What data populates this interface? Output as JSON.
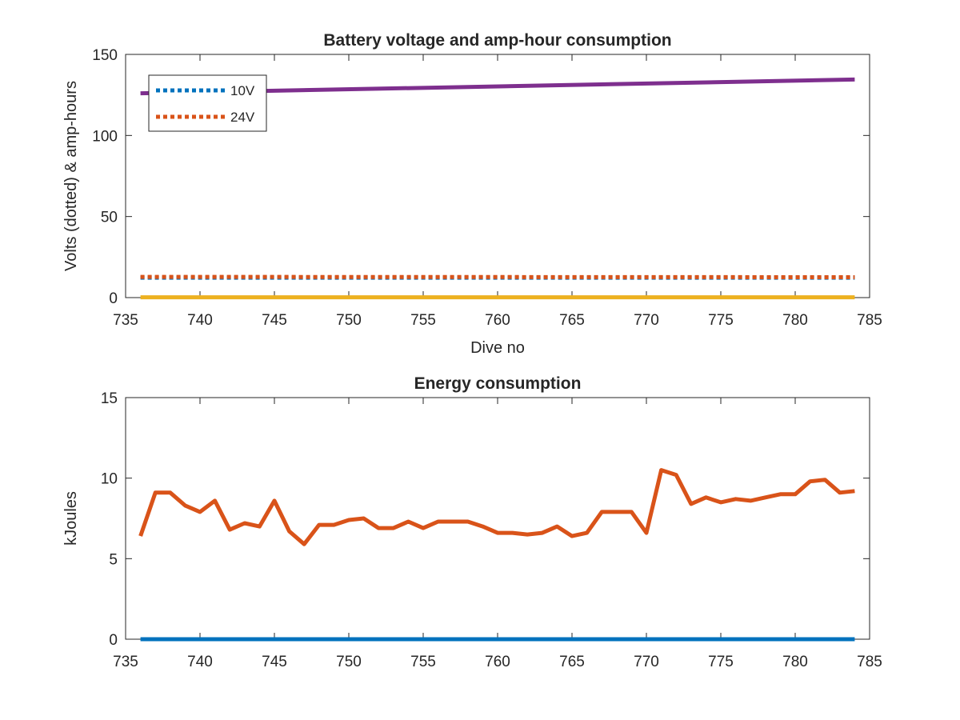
{
  "chart_data": [
    {
      "type": "line",
      "title": "Battery voltage and amp-hour consumption",
      "xlabel": "Dive no",
      "ylabel": "Volts (dotted) & amp-hours",
      "xlim": [
        735,
        785
      ],
      "ylim": [
        0,
        150
      ],
      "xticks": [
        735,
        740,
        745,
        750,
        755,
        760,
        765,
        770,
        775,
        780,
        785
      ],
      "yticks": [
        0,
        50,
        100,
        150
      ],
      "legend": {
        "placement": "top-left",
        "entries": [
          "10V",
          "24V"
        ]
      },
      "grid": false,
      "series": [
        {
          "name": "10V",
          "style": "dotted",
          "color": "#0072BD",
          "x": [
            736,
            784
          ],
          "y": [
            12.3,
            12.3
          ]
        },
        {
          "name": "24V",
          "style": "dotted",
          "color": "#D95319",
          "x": [
            736,
            784
          ],
          "y": [
            12.8,
            12.6
          ]
        },
        {
          "style": "solid",
          "color": "#EDB120",
          "x": [
            736,
            784
          ],
          "y": [
            0.2,
            0.2
          ]
        },
        {
          "style": "solid",
          "color": "#7E2F8E",
          "x": [
            736,
            784
          ],
          "y": [
            126,
            134.5
          ]
        }
      ]
    },
    {
      "type": "line",
      "title": "Energy consumption",
      "xlabel": "",
      "ylabel": "kJoules",
      "xlim": [
        735,
        785
      ],
      "ylim": [
        0,
        15
      ],
      "xticks": [
        735,
        740,
        745,
        750,
        755,
        760,
        765,
        770,
        775,
        780,
        785
      ],
      "yticks": [
        0,
        5,
        10,
        15
      ],
      "grid": false,
      "series": [
        {
          "style": "solid",
          "color": "#D95319",
          "x": [
            736,
            737,
            738,
            739,
            740,
            741,
            742,
            743,
            744,
            745,
            746,
            747,
            748,
            749,
            750,
            751,
            752,
            753,
            754,
            755,
            756,
            757,
            758,
            759,
            760,
            761,
            762,
            763,
            764,
            765,
            766,
            767,
            768,
            769,
            770,
            771,
            772,
            773,
            774,
            775,
            776,
            777,
            778,
            779,
            780,
            781,
            782,
            783,
            784
          ],
          "y": [
            6.4,
            9.1,
            9.1,
            8.3,
            7.9,
            8.6,
            6.8,
            7.2,
            7.0,
            8.6,
            6.7,
            5.9,
            7.1,
            7.1,
            7.4,
            7.5,
            6.9,
            6.9,
            7.3,
            6.9,
            7.3,
            7.3,
            7.3,
            7.0,
            6.6,
            6.6,
            6.5,
            6.6,
            7.0,
            6.4,
            6.6,
            7.9,
            7.9,
            7.9,
            6.6,
            10.5,
            10.2,
            8.4,
            8.8,
            8.5,
            8.7,
            8.6,
            8.8,
            9.0,
            9.0,
            9.8,
            9.9,
            9.1,
            9.2
          ]
        },
        {
          "style": "solid",
          "color": "#0072BD",
          "x": [
            736,
            784
          ],
          "y": [
            0,
            0
          ]
        }
      ]
    }
  ]
}
